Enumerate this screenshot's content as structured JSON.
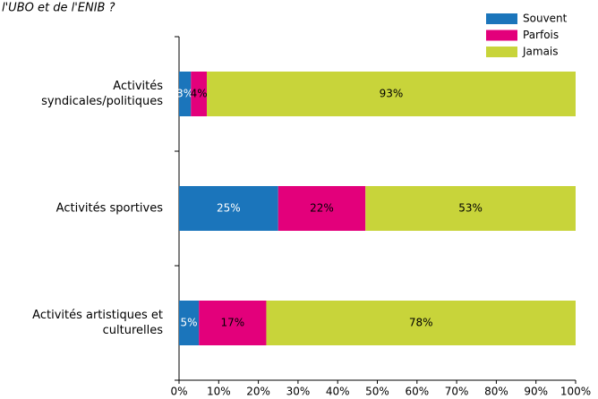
{
  "chart_data": {
    "type": "stacked_barh",
    "title": "l'UBO et de l'ENIB ?",
    "categories": [
      "Activités syndicales/politiques",
      "Activités sportives",
      "Activités artistiques et culturelles"
    ],
    "series": [
      {
        "name": "Souvent",
        "color": "#1b75bb",
        "label_color": "#ffffff",
        "values": [
          3,
          25,
          5
        ],
        "value_labels": [
          "3%",
          "25%",
          "5%"
        ]
      },
      {
        "name": "Parfois",
        "color": "#e3007b",
        "label_color": "#000000",
        "values": [
          4,
          22,
          17
        ],
        "value_labels": [
          "4%",
          "22%",
          "17%"
        ]
      },
      {
        "name": "Jamais",
        "color": "#c8d43a",
        "label_color": "#000000",
        "values": [
          93,
          53,
          78
        ],
        "value_labels": [
          "93%",
          "53%",
          "78%"
        ]
      }
    ],
    "xlim": [
      0,
      100
    ],
    "xticks": [
      {
        "value": 0,
        "label": "0%"
      },
      {
        "value": 10,
        "label": "10%"
      },
      {
        "value": 20,
        "label": "20%"
      },
      {
        "value": 30,
        "label": "30%"
      },
      {
        "value": 40,
        "label": "40%"
      },
      {
        "value": 50,
        "label": "50%"
      },
      {
        "value": 60,
        "label": "60%"
      },
      {
        "value": 70,
        "label": "70%"
      },
      {
        "value": 80,
        "label": "80%"
      },
      {
        "value": 90,
        "label": "90%"
      },
      {
        "value": 100,
        "label": "100%"
      }
    ],
    "legend": "upper right"
  }
}
